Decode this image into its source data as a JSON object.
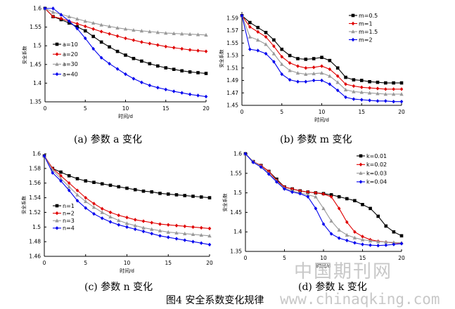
{
  "figure_caption": "图4 安全系数变化规律",
  "watermark": {
    "cn": "中国期刊网",
    "url": "www.chinaqking.com"
  },
  "colors": {
    "black": "#000000",
    "red": "#e00000",
    "gray": "#9a9a9a",
    "blue": "#0000ee"
  },
  "chart_data": [
    {
      "id": "a",
      "type": "line",
      "caption": "(a) 参数 a 变化",
      "xlabel": "时间/d",
      "ylabel": "安全系数",
      "xlim": [
        0,
        20
      ],
      "ylim": [
        1.35,
        1.6
      ],
      "xticks": [
        0,
        5,
        10,
        15,
        20
      ],
      "yticks": [
        1.35,
        1.4,
        1.45,
        1.5,
        1.55,
        1.6
      ],
      "ytick_labels": [
        "1.35",
        "1.4",
        "1.45",
        "1.5",
        "1.55",
        "1.6"
      ],
      "legend_position": "middle-left",
      "x": [
        0,
        1,
        2,
        3,
        4,
        5,
        6,
        7,
        8,
        9,
        10,
        11,
        12,
        13,
        14,
        15,
        16,
        17,
        18,
        19,
        20
      ],
      "series": [
        {
          "name": "a=10",
          "marker": "square",
          "color": "#000000",
          "values": [
            1.6,
            1.578,
            1.57,
            1.561,
            1.551,
            1.54,
            1.525,
            1.51,
            1.497,
            1.485,
            1.475,
            1.466,
            1.459,
            1.452,
            1.446,
            1.441,
            1.437,
            1.433,
            1.43,
            1.428,
            1.426
          ]
        },
        {
          "name": "a=20",
          "marker": "diamond",
          "color": "#e00000",
          "values": [
            1.6,
            1.578,
            1.573,
            1.566,
            1.559,
            1.552,
            1.545,
            1.538,
            1.532,
            1.526,
            1.52,
            1.515,
            1.51,
            1.506,
            1.502,
            1.498,
            1.495,
            1.492,
            1.489,
            1.487,
            1.485
          ]
        },
        {
          "name": "a=30",
          "marker": "triangle",
          "color": "#9a9a9a",
          "values": [
            1.6,
            1.59,
            1.584,
            1.578,
            1.572,
            1.566,
            1.561,
            1.556,
            1.552,
            1.548,
            1.545,
            1.542,
            1.54,
            1.538,
            1.536,
            1.534,
            1.533,
            1.532,
            1.531,
            1.53,
            1.529
          ]
        },
        {
          "name": "a=40",
          "marker": "diamond",
          "color": "#0000ee",
          "values": [
            1.6,
            1.6,
            1.583,
            1.566,
            1.546,
            1.52,
            1.492,
            1.468,
            1.452,
            1.438,
            1.424,
            1.412,
            1.402,
            1.394,
            1.388,
            1.383,
            1.378,
            1.374,
            1.37,
            1.367,
            1.364
          ]
        }
      ]
    },
    {
      "id": "b",
      "type": "line",
      "caption": "(b) 参数 m 变化",
      "xlabel": "时间/d",
      "ylabel": "安全系数",
      "xlim": [
        0,
        20
      ],
      "ylim": [
        1.45,
        1.6
      ],
      "xticks": [
        0,
        5,
        10,
        15,
        20
      ],
      "yticks": [
        1.45,
        1.47,
        1.49,
        1.51,
        1.53,
        1.55,
        1.57,
        1.59
      ],
      "ytick_labels": [
        "1.45",
        "1.47",
        "1.49",
        "1.51",
        "1.53",
        "1.55",
        "1.57",
        "1.59"
      ],
      "legend_position": "top-right",
      "x": [
        0,
        1,
        2,
        3,
        4,
        5,
        6,
        7,
        8,
        9,
        10,
        11,
        12,
        13,
        14,
        15,
        16,
        17,
        18,
        19,
        20
      ],
      "series": [
        {
          "name": "m=0.5",
          "marker": "square",
          "color": "#000000",
          "values": [
            1.594,
            1.583,
            1.575,
            1.567,
            1.555,
            1.54,
            1.53,
            1.525,
            1.524,
            1.525,
            1.527,
            1.522,
            1.51,
            1.495,
            1.491,
            1.49,
            1.488,
            1.487,
            1.486,
            1.486,
            1.486
          ]
        },
        {
          "name": "m=1",
          "marker": "diamond",
          "color": "#e00000",
          "values": [
            1.594,
            1.576,
            1.568,
            1.56,
            1.545,
            1.528,
            1.518,
            1.513,
            1.51,
            1.511,
            1.513,
            1.508,
            1.497,
            1.484,
            1.481,
            1.479,
            1.478,
            1.477,
            1.476,
            1.476,
            1.476
          ]
        },
        {
          "name": "m=1.5",
          "marker": "triangle",
          "color": "#9a9a9a",
          "values": [
            1.594,
            1.56,
            1.555,
            1.548,
            1.533,
            1.516,
            1.506,
            1.502,
            1.5,
            1.501,
            1.502,
            1.497,
            1.487,
            1.475,
            1.472,
            1.471,
            1.47,
            1.469,
            1.468,
            1.468,
            1.468
          ]
        },
        {
          "name": "m=2",
          "marker": "diamond",
          "color": "#0000ee",
          "values": [
            1.594,
            1.54,
            1.538,
            1.533,
            1.52,
            1.5,
            1.491,
            1.488,
            1.488,
            1.49,
            1.49,
            1.484,
            1.474,
            1.463,
            1.46,
            1.459,
            1.458,
            1.457,
            1.457,
            1.456,
            1.456
          ]
        }
      ]
    },
    {
      "id": "c",
      "type": "line",
      "caption": "(c) 参数 n 变化",
      "xlabel": "时间/d",
      "ylabel": "安全系数",
      "xlim": [
        0,
        20
      ],
      "ylim": [
        1.46,
        1.6
      ],
      "xticks": [
        0,
        5,
        10,
        15,
        20
      ],
      "yticks": [
        1.46,
        1.48,
        1.5,
        1.52,
        1.54,
        1.56,
        1.58,
        1.6
      ],
      "ytick_labels": [
        "1.46",
        "1.48",
        "1.5",
        "1.52",
        "1.54",
        "1.56",
        "1.58",
        "1.6"
      ],
      "legend_position": "middle-left",
      "x": [
        0,
        1,
        2,
        3,
        4,
        5,
        6,
        7,
        8,
        9,
        10,
        11,
        12,
        13,
        14,
        15,
        16,
        17,
        18,
        19,
        20
      ],
      "series": [
        {
          "name": "n=1",
          "marker": "square",
          "color": "#000000",
          "values": [
            1.597,
            1.58,
            1.575,
            1.57,
            1.566,
            1.563,
            1.561,
            1.559,
            1.557,
            1.555,
            1.553,
            1.551,
            1.549,
            1.548,
            1.546,
            1.545,
            1.544,
            1.543,
            1.542,
            1.541,
            1.54
          ]
        },
        {
          "name": "n=2",
          "marker": "diamond",
          "color": "#e00000",
          "values": [
            1.597,
            1.58,
            1.57,
            1.56,
            1.55,
            1.54,
            1.532,
            1.525,
            1.52,
            1.516,
            1.513,
            1.51,
            1.508,
            1.506,
            1.504,
            1.503,
            1.502,
            1.501,
            1.5,
            1.499,
            1.498
          ]
        },
        {
          "name": "n=3",
          "marker": "triangle",
          "color": "#9a9a9a",
          "values": [
            1.597,
            1.578,
            1.566,
            1.555,
            1.544,
            1.535,
            1.527,
            1.52,
            1.514,
            1.509,
            1.505,
            1.502,
            1.499,
            1.497,
            1.495,
            1.493,
            1.492,
            1.491,
            1.49,
            1.489,
            1.488
          ]
        },
        {
          "name": "n=4",
          "marker": "diamond",
          "color": "#0000ee",
          "values": [
            1.597,
            1.574,
            1.563,
            1.55,
            1.536,
            1.526,
            1.518,
            1.512,
            1.507,
            1.503,
            1.5,
            1.497,
            1.494,
            1.491,
            1.488,
            1.486,
            1.484,
            1.482,
            1.48,
            1.478,
            1.476
          ]
        }
      ]
    },
    {
      "id": "d",
      "type": "line",
      "caption": "(d) 参数 k 变化",
      "xlabel": "时间/d",
      "ylabel": "安全系数",
      "xlim": [
        0,
        20
      ],
      "ylim": [
        1.35,
        1.6
      ],
      "xticks": [
        0,
        5,
        10,
        15,
        20
      ],
      "yticks": [
        1.35,
        1.4,
        1.45,
        1.5,
        1.55,
        1.6
      ],
      "ytick_labels": [
        "1.35",
        "1.4",
        "1.45",
        "1.5",
        "1.55",
        "1.6"
      ],
      "legend_position": "top-right",
      "x": [
        0,
        1,
        2,
        3,
        4,
        5,
        6,
        7,
        8,
        9,
        10,
        11,
        12,
        13,
        14,
        15,
        16,
        17,
        18,
        19,
        20
      ],
      "series": [
        {
          "name": "k=0.01",
          "marker": "square",
          "color": "#000000",
          "values": [
            1.6,
            1.58,
            1.57,
            1.555,
            1.535,
            1.515,
            1.51,
            1.505,
            1.502,
            1.5,
            1.498,
            1.495,
            1.49,
            1.485,
            1.48,
            1.47,
            1.46,
            1.44,
            1.415,
            1.4,
            1.39
          ]
        },
        {
          "name": "k=0.02",
          "marker": "diamond",
          "color": "#e00000",
          "values": [
            1.6,
            1.58,
            1.57,
            1.555,
            1.532,
            1.515,
            1.51,
            1.505,
            1.502,
            1.5,
            1.497,
            1.49,
            1.46,
            1.425,
            1.4,
            1.388,
            1.38,
            1.376,
            1.374,
            1.372,
            1.371
          ]
        },
        {
          "name": "k=0.03",
          "marker": "triangle",
          "color": "#9a9a9a",
          "values": [
            1.6,
            1.58,
            1.568,
            1.55,
            1.53,
            1.512,
            1.505,
            1.5,
            1.495,
            1.49,
            1.46,
            1.428,
            1.405,
            1.392,
            1.385,
            1.38,
            1.377,
            1.375,
            1.374,
            1.373,
            1.372
          ]
        },
        {
          "name": "k=0.04",
          "marker": "diamond",
          "color": "#0000ee",
          "values": [
            1.6,
            1.578,
            1.566,
            1.548,
            1.528,
            1.51,
            1.502,
            1.498,
            1.49,
            1.46,
            1.42,
            1.395,
            1.384,
            1.378,
            1.372,
            1.368,
            1.366,
            1.365,
            1.366,
            1.368,
            1.37
          ]
        }
      ]
    }
  ]
}
